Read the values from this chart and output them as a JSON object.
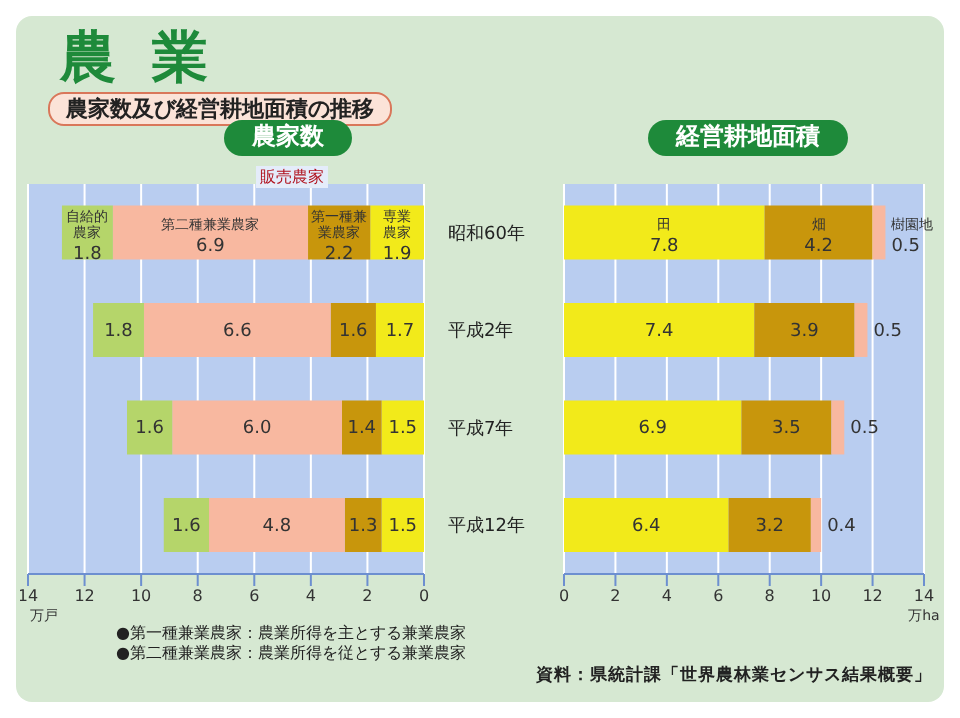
{
  "chart_data": [
    {
      "type": "bar",
      "orientation": "horizontal",
      "stacked": true,
      "title": "農家数",
      "xlabel": "万戸",
      "categories": [
        "昭和60年",
        "平成2年",
        "平成7年",
        "平成12年"
      ],
      "series": [
        {
          "name": "専業農家",
          "color": "#f2ea1a",
          "values": [
            1.9,
            1.7,
            1.5,
            1.5
          ]
        },
        {
          "name": "第一種兼業農家",
          "color": "#c8960c",
          "values": [
            2.2,
            1.6,
            1.4,
            1.3
          ]
        },
        {
          "name": "第二種兼業農家",
          "color": "#f8b8a0",
          "values": [
            6.9,
            6.6,
            6.0,
            4.8
          ],
          "value_labels": [
            "6.9",
            "6.6",
            "6.0",
            "4.8"
          ]
        },
        {
          "name": "自給的農家",
          "color": "#b5d56a",
          "values": [
            1.8,
            1.8,
            1.6,
            1.6
          ]
        }
      ],
      "xlim": [
        14,
        0
      ],
      "xticks": [
        14,
        12,
        10,
        8,
        6,
        4,
        2,
        0
      ],
      "grid": "x",
      "data_labels": true,
      "annotations": [
        "農業",
        "農家数及び経営耕地面積の推移",
        "販売農家",
        "●第一種兼業農家：農業所得を主とする兼業農家",
        "●第二種兼業農家：農業所得を従とする兼業農家",
        "資料：県統計課「世界農林業センサス結果概要」"
      ]
    },
    {
      "type": "bar",
      "orientation": "horizontal",
      "stacked": true,
      "title": "経営耕地面積",
      "xlabel": "万ha",
      "categories": [
        "昭和60年",
        "平成2年",
        "平成7年",
        "平成12年"
      ],
      "series": [
        {
          "name": "田",
          "color": "#f2ea1a",
          "values": [
            7.8,
            7.4,
            6.9,
            6.4
          ]
        },
        {
          "name": "畑",
          "color": "#c8960c",
          "values": [
            4.2,
            3.9,
            3.5,
            3.2
          ]
        },
        {
          "name": "樹園地",
          "color": "#f8b8a0",
          "values": [
            0.5,
            0.5,
            0.5,
            0.4
          ]
        }
      ],
      "xlim": [
        0,
        14
      ],
      "xticks": [
        0,
        2,
        4,
        6,
        8,
        10,
        12,
        14
      ],
      "grid": "x",
      "data_labels": true,
      "tick_labels": "x"
    }
  ]
}
